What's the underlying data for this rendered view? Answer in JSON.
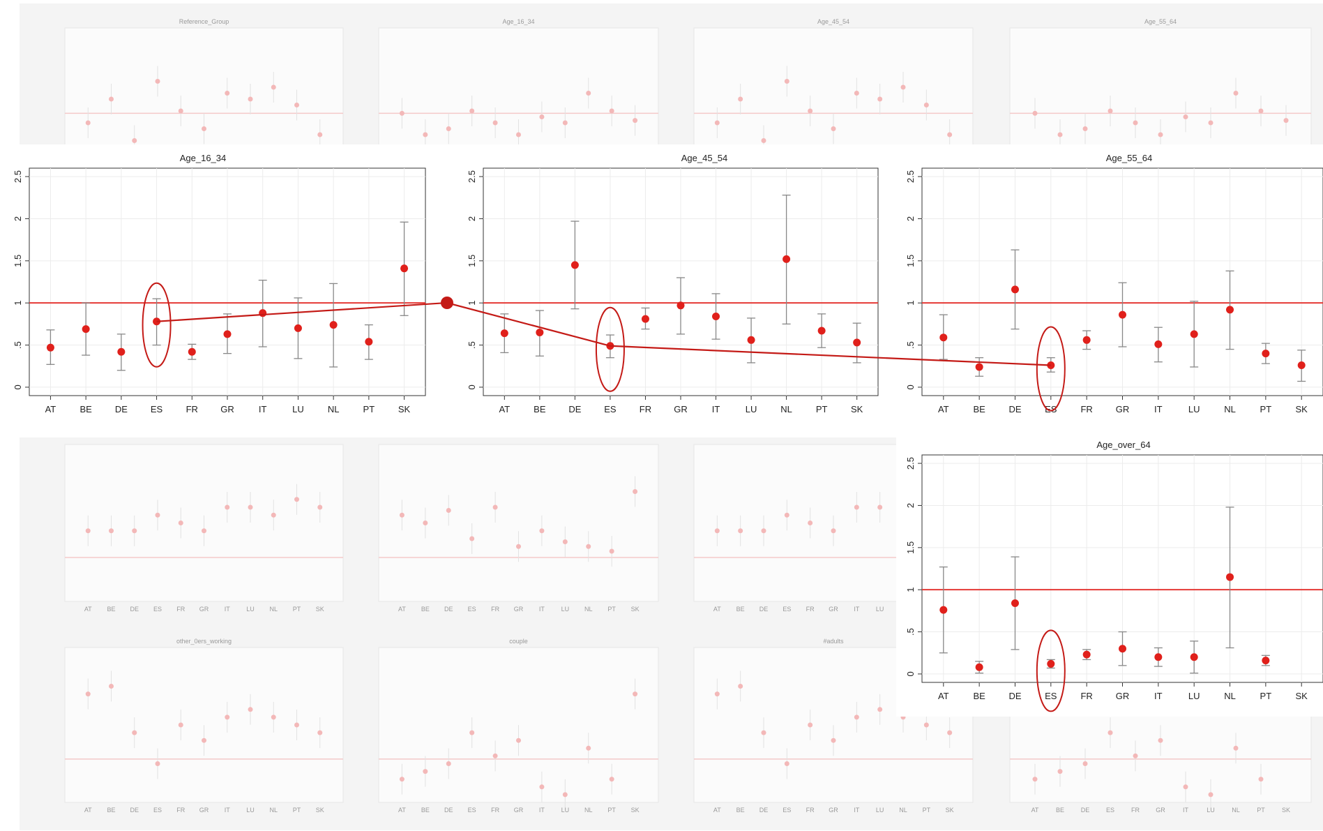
{
  "chart_data": [
    {
      "type": "scatter",
      "title": "Age_16_34",
      "categories": [
        "AT",
        "BE",
        "DE",
        "ES",
        "FR",
        "GR",
        "IT",
        "LU",
        "NL",
        "PT",
        "SK"
      ],
      "series": [
        {
          "values": [
            0.47,
            0.69,
            0.42,
            0.78,
            0.42,
            0.63,
            0.88,
            0.7,
            0.74,
            0.54,
            1.41
          ],
          "lower": [
            0.27,
            0.38,
            0.2,
            0.5,
            0.33,
            0.4,
            0.48,
            0.34,
            0.24,
            0.33,
            0.85
          ],
          "upper": [
            0.68,
            1.0,
            0.63,
            1.05,
            0.51,
            0.87,
            1.27,
            1.06,
            1.23,
            0.74,
            1.96
          ]
        }
      ],
      "ylim": [
        -0.1,
        2.6
      ],
      "yticks": [
        "0",
        ".5",
        "1",
        "1.5",
        "2",
        "2.5"
      ],
      "reference_line": 1,
      "highlighted_category": "ES",
      "grid": true
    },
    {
      "type": "scatter",
      "title": "Age_45_54",
      "categories": [
        "AT",
        "BE",
        "DE",
        "ES",
        "FR",
        "GR",
        "IT",
        "LU",
        "NL",
        "PT",
        "SK"
      ],
      "series": [
        {
          "values": [
            0.64,
            0.65,
            1.45,
            0.49,
            0.81,
            0.97,
            0.84,
            0.56,
            1.52,
            0.67,
            0.53
          ],
          "lower": [
            0.41,
            0.37,
            0.93,
            0.35,
            0.69,
            0.63,
            0.57,
            0.29,
            0.75,
            0.47,
            0.29
          ],
          "upper": [
            0.87,
            0.91,
            1.97,
            0.62,
            0.94,
            1.3,
            1.11,
            0.82,
            2.28,
            0.87,
            0.76
          ]
        }
      ],
      "ylim": [
        -0.1,
        2.6
      ],
      "yticks": [
        "0",
        ".5",
        "1",
        "1.5",
        "2",
        "2.5"
      ],
      "reference_line": 1,
      "highlighted_category": "ES",
      "grid": true
    },
    {
      "type": "scatter",
      "title": "Age_55_64",
      "categories": [
        "AT",
        "BE",
        "DE",
        "ES",
        "FR",
        "GR",
        "IT",
        "LU",
        "NL",
        "PT",
        "SK"
      ],
      "series": [
        {
          "values": [
            0.59,
            0.24,
            1.16,
            0.26,
            0.56,
            0.86,
            0.51,
            0.63,
            0.92,
            0.4,
            0.26
          ],
          "lower": [
            0.33,
            0.13,
            0.69,
            0.18,
            0.45,
            0.48,
            0.3,
            0.24,
            0.45,
            0.28,
            0.07
          ],
          "upper": [
            0.86,
            0.35,
            1.63,
            0.35,
            0.67,
            1.24,
            0.71,
            1.02,
            1.38,
            0.52,
            0.44
          ]
        }
      ],
      "ylim": [
        -0.1,
        2.6
      ],
      "yticks": [
        "0",
        ".5",
        "1",
        "1.5",
        "2",
        "2.5"
      ],
      "reference_line": 1,
      "highlighted_category": "ES",
      "grid": true
    },
    {
      "type": "scatter",
      "title": "Age_over_64",
      "categories": [
        "AT",
        "BE",
        "DE",
        "ES",
        "FR",
        "GR",
        "IT",
        "LU",
        "NL",
        "PT",
        "SK"
      ],
      "series": [
        {
          "values": [
            0.76,
            0.08,
            0.84,
            0.12,
            0.23,
            0.3,
            0.2,
            0.2,
            1.15,
            0.16,
            null
          ],
          "lower": [
            0.25,
            0.01,
            0.29,
            0.07,
            0.17,
            0.1,
            0.09,
            0.01,
            0.31,
            0.1,
            null
          ],
          "upper": [
            1.27,
            0.15,
            1.39,
            0.17,
            0.29,
            0.5,
            0.31,
            0.39,
            1.98,
            0.22,
            null
          ]
        }
      ],
      "ylim": [
        -0.1,
        2.6
      ],
      "yticks": [
        "0",
        ".5",
        "1",
        "1.5",
        "2",
        "2.5"
      ],
      "reference_line": 1,
      "highlighted_category": "ES",
      "grid": true
    }
  ],
  "background_panels": {
    "titles": [
      "Reference_Group",
      "Age_16_34",
      "Age_45_54",
      "Age_55_64",
      "",
      "",
      "",
      "other_0ers_working",
      "couple",
      "#adults",
      ""
    ]
  },
  "colors": {
    "marker": "#e0201b",
    "reference_line": "#e53935",
    "error_bar": "#888888",
    "annotation": "#c41a16",
    "faded_marker": "#f3b8b8",
    "faded_background": "#f4f4f4"
  }
}
